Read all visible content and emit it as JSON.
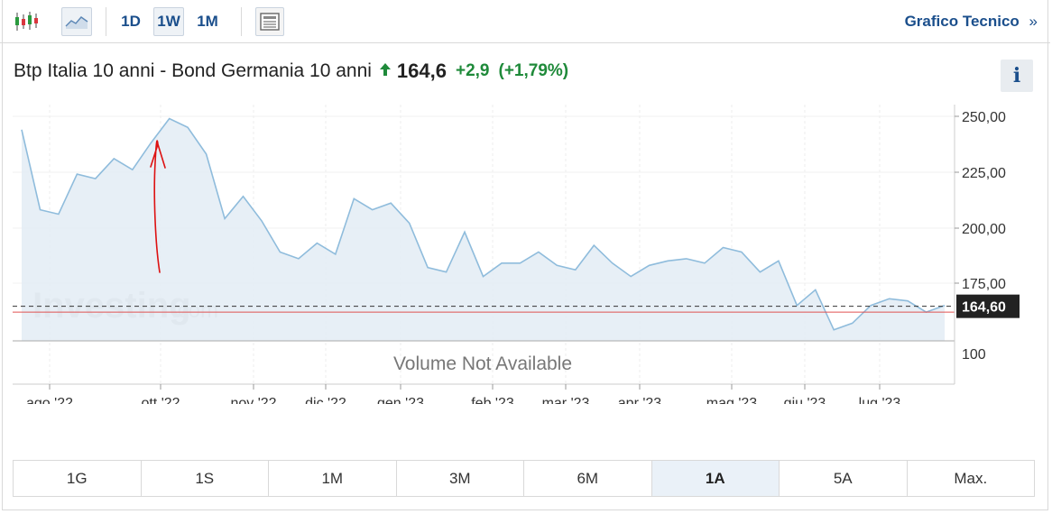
{
  "toolbar": {
    "chart_types": [
      {
        "name": "candlestick",
        "icon": "candlestick-icon"
      },
      {
        "name": "area",
        "icon": "area-chart-icon"
      }
    ],
    "timeframes": [
      {
        "label": "1D",
        "active": false
      },
      {
        "label": "1W",
        "active": true
      },
      {
        "label": "1M",
        "active": false
      }
    ],
    "news_icon": "news-icon",
    "link_label": "Grafico Tecnico",
    "link_suffix": "»"
  },
  "header": {
    "title": "Btp Italia 10 anni - Bond Germania 10 anni",
    "price": "164,6",
    "change": "+2,9",
    "change_pct": "(+1,79%)",
    "up_color": "#1f8a3a",
    "info_label": "i"
  },
  "chart_data": {
    "type": "area",
    "x_labels": [
      "ago '22",
      "ott '22",
      "nov '22",
      "dic '22",
      "gen '23",
      "feb '23",
      "mar '23",
      "apr '23",
      "mag '23",
      "giu '23",
      "lug '23"
    ],
    "y_ticks": [
      "250,00",
      "225,00",
      "200,00",
      "175,00"
    ],
    "ylim": [
      150,
      253
    ],
    "last_value": 164.6,
    "last_label": "164,60",
    "red_line_value": 162,
    "series": [
      {
        "values": [
          244,
          208,
          206,
          224,
          222,
          231,
          226,
          238,
          249,
          245,
          233,
          204,
          214,
          203,
          189,
          186,
          193,
          188,
          213,
          208,
          211,
          202,
          182,
          180,
          198,
          178,
          184,
          184,
          189,
          183,
          181,
          192,
          184,
          178,
          183,
          185,
          186,
          184,
          191,
          189,
          180,
          185,
          165,
          172,
          154,
          157,
          165,
          168,
          167,
          162,
          165
        ]
      }
    ],
    "volume_label": "Volume Not Available",
    "volume_tick": "100",
    "watermark": "Investing",
    "watermark_suffix": ".com",
    "colors": {
      "line": "#8fbcdc",
      "fill": "#e3ecf4",
      "red_line": "#e05050",
      "annotation": "#dd1111",
      "price_tag": "#222222"
    }
  },
  "range_buttons": [
    {
      "label": "1G",
      "active": false
    },
    {
      "label": "1S",
      "active": false
    },
    {
      "label": "1M",
      "active": false
    },
    {
      "label": "3M",
      "active": false
    },
    {
      "label": "6M",
      "active": false
    },
    {
      "label": "1A",
      "active": true
    },
    {
      "label": "5A",
      "active": false
    },
    {
      "label": "Max.",
      "active": false
    }
  ]
}
